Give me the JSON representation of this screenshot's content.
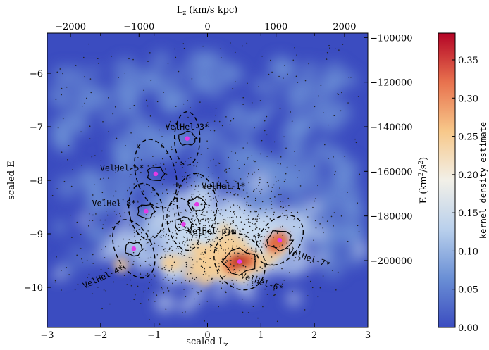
{
  "chart_data": {
    "type": "heatmap",
    "title": "",
    "bottom_axis": {
      "label": "scaled L",
      "label_sub": "z",
      "range": [
        -3,
        3
      ],
      "ticks": [
        -3,
        -2,
        -1,
        0,
        1,
        2,
        3
      ],
      "tick_labels": [
        "−3",
        "−2",
        "−1",
        "0",
        "1",
        "2",
        "3"
      ]
    },
    "left_axis": {
      "label": "scaled E",
      "range": [
        -10.75,
        -5.25
      ],
      "ticks": [
        -6,
        -7,
        -8,
        -9,
        -10
      ],
      "tick_labels": [
        "−6",
        "−7",
        "−8",
        "−9",
        "−10"
      ]
    },
    "top_axis": {
      "label": "L",
      "label_sub": "z",
      "label_unit": " (km/s kpc)",
      "range": [
        -2340,
        2340
      ],
      "ticks": [
        -2000,
        -1000,
        0,
        1000,
        2000
      ],
      "tick_labels": [
        "−2000",
        "−1000",
        "0",
        "1000",
        "2000"
      ]
    },
    "right_axis": {
      "label": "E (km",
      "label_sup1": "2",
      "label_mid": "/s",
      "label_sup2": "2",
      "label_end": ")",
      "range": [
        -230000,
        -98000
      ],
      "ticks": [
        -100000,
        -120000,
        -140000,
        -160000,
        -180000,
        -200000
      ],
      "tick_labels": [
        "−100000",
        "−120000",
        "−140000",
        "−160000",
        "−180000",
        "−200000"
      ]
    },
    "colorbar": {
      "label": "kernel density estimate",
      "range": [
        0,
        0.385
      ],
      "ticks": [
        0,
        0.05,
        0.1,
        0.15,
        0.2,
        0.25,
        0.3,
        0.35
      ],
      "tick_labels": [
        "0.00",
        "0.05",
        "0.10",
        "0.15",
        "0.20",
        "0.25",
        "0.30",
        "0.35"
      ],
      "colormap": [
        "#3b4cc0",
        "#6a8fd5",
        "#b9d0ec",
        "#f2f0e8",
        "#f7c88a",
        "#e8724e",
        "#b40426"
      ]
    },
    "groups": [
      {
        "name": "VelHel-3*",
        "x": -0.38,
        "y": -7.22,
        "label_x": -0.38,
        "label_y": -7.05
      },
      {
        "name": "VelHel-5*",
        "x": -0.97,
        "y": -7.88,
        "label_x": -1.6,
        "label_y": -7.82
      },
      {
        "name": "VelHel-1*",
        "x": -0.2,
        "y": -8.45,
        "label_x": 0.3,
        "label_y": -8.16
      },
      {
        "name": "VelHel-8*",
        "x": -1.15,
        "y": -8.58,
        "label_x": -1.75,
        "label_y": -8.48
      },
      {
        "name": "VelHel-pjm",
        "x": -0.45,
        "y": -8.82,
        "label_x": 0.08,
        "label_y": -9.0
      },
      {
        "name": "VelHel-4*",
        "x": -1.38,
        "y": -9.28,
        "label_x": -1.93,
        "label_y": -9.85
      },
      {
        "name": "VelHel-6*",
        "x": 0.6,
        "y": -9.52,
        "label_x": 1.0,
        "label_y": -9.95
      },
      {
        "name": "VelHel-7*",
        "x": 1.35,
        "y": -9.12,
        "label_x": 1.88,
        "label_y": -9.5
      }
    ]
  }
}
